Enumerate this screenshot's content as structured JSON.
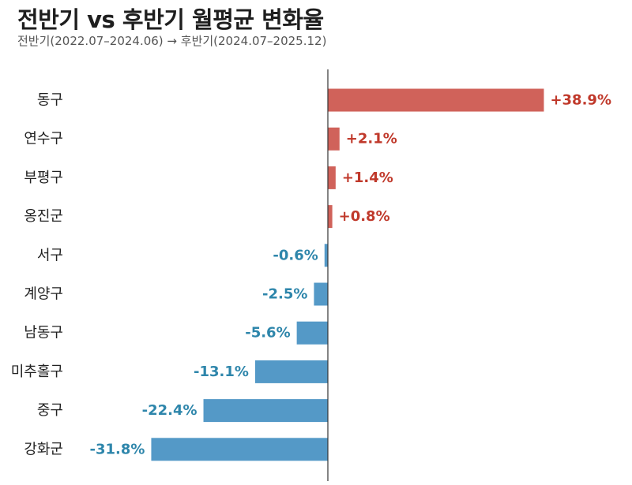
{
  "header": {
    "title": "전반기 vs 후반기 월평균 변화율",
    "subtitle": "전반기(2022.07–2024.06) → 후반기(2024.07–2025.12)"
  },
  "colors": {
    "positive_bar": "#d0625a",
    "positive_text": "#c0392b",
    "negative_bar": "#5499c7",
    "negative_text": "#2e86ab",
    "axis": "#333333"
  },
  "chart_data": {
    "type": "bar",
    "orientation": "horizontal",
    "title": "전반기 vs 후반기 월평균 변화율",
    "subtitle": "전반기(2022.07–2024.06) → 후반기(2024.07–2025.12)",
    "categories": [
      "동구",
      "연수구",
      "부평구",
      "옹진군",
      "서구",
      "계양구",
      "남동구",
      "미추홀구",
      "중구",
      "강화군"
    ],
    "values": [
      38.9,
      2.1,
      1.4,
      0.8,
      -0.6,
      -2.5,
      -5.6,
      -13.1,
      -22.4,
      -31.8
    ],
    "labels": [
      "+38.9%",
      "+2.1%",
      "+1.4%",
      "+0.8%",
      "-0.6%",
      "-2.5%",
      "-5.6%",
      "-13.1%",
      "-22.4%",
      "-31.8%"
    ],
    "unit": "%",
    "xlim": [
      -38,
      51
    ],
    "xlabel": "",
    "ylabel": "",
    "grid": false,
    "zero_line": true
  }
}
